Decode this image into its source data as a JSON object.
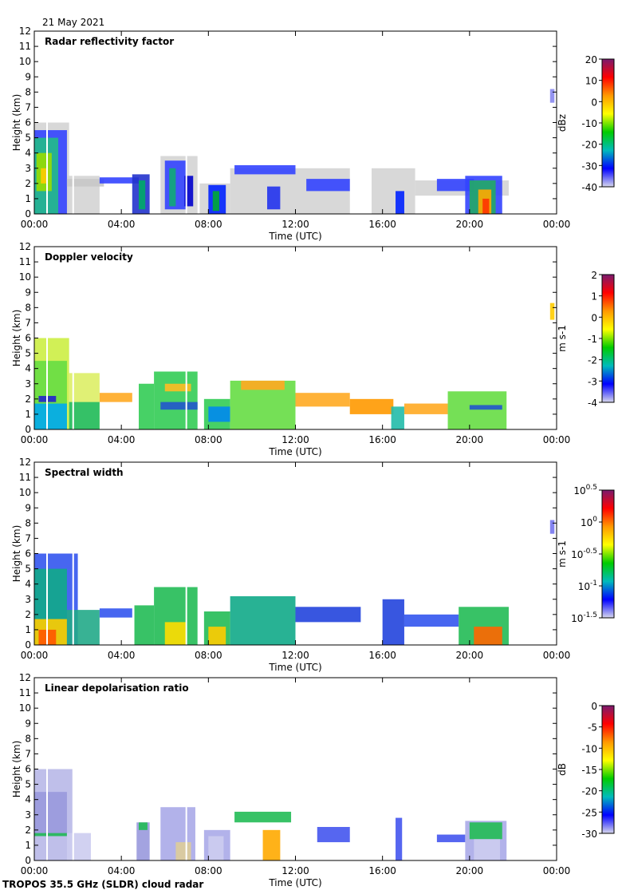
{
  "date_label": "21 May 2021",
  "footer_label": "TROPOS 35.5 GHz (SLDR) cloud radar",
  "chart_data": [
    {
      "type": "heatmap",
      "title": "Radar reflectivity factor",
      "xlabel": "Time (UTC)",
      "ylabel": "Height (km)",
      "xlim": [
        0,
        24
      ],
      "ylim": [
        0,
        12
      ],
      "xticks": [
        "00:00",
        "04:00",
        "08:00",
        "12:00",
        "16:00",
        "20:00",
        "00:00"
      ],
      "yticks": [
        "0",
        "1",
        "2",
        "3",
        "4",
        "5",
        "6",
        "7",
        "8",
        "9",
        "10",
        "11",
        "12"
      ],
      "colorbar": {
        "label": "dBz",
        "ticks": [
          "20",
          "10",
          "0",
          "-10",
          "-20",
          "-30",
          "-40"
        ],
        "colors": [
          "#7a1a6e",
          "#ff0000",
          "#ff9900",
          "#ffff00",
          "#00cc00",
          "#00bbbb",
          "#0000ff",
          "#d8d8ec"
        ]
      },
      "patches": [
        [
          0,
          3,
          0,
          2.5,
          "#d4d4d4"
        ],
        [
          0,
          1.6,
          0,
          6,
          "#d4d4d4"
        ],
        [
          0,
          1.5,
          0,
          5.5,
          "#3344ff"
        ],
        [
          0,
          1.1,
          0,
          5,
          "#22bb88"
        ],
        [
          0.1,
          0.8,
          1.5,
          4,
          "#99dd00"
        ],
        [
          0.3,
          0.6,
          2,
          3,
          "#ffcc00"
        ],
        [
          1.5,
          3.2,
          1.8,
          2.3,
          "#c8c8c8"
        ],
        [
          3,
          4.8,
          2,
          2.4,
          "#3344ff"
        ],
        [
          4.5,
          5.3,
          0,
          2.6,
          "#2233cc"
        ],
        [
          4.8,
          5.1,
          0.3,
          2.2,
          "#00aa66"
        ],
        [
          5.8,
          7.5,
          0,
          3.8,
          "#d4d4d4"
        ],
        [
          6,
          7,
          0.3,
          3.5,
          "#3344ff"
        ],
        [
          6.2,
          6.5,
          0.5,
          3,
          "#11aa77"
        ],
        [
          6.9,
          7.3,
          0.5,
          2.5,
          "#0000cc"
        ],
        [
          7.6,
          9,
          0,
          2,
          "#d4d4d4"
        ],
        [
          8,
          8.8,
          0,
          1.9,
          "#0022ff"
        ],
        [
          8.2,
          8.5,
          0.2,
          1.5,
          "#00aa33"
        ],
        [
          9,
          14.5,
          0,
          3,
          "#d4d4d4"
        ],
        [
          9.2,
          12,
          2.6,
          3.2,
          "#3344ff"
        ],
        [
          10.7,
          11.3,
          0.3,
          1.8,
          "#2233ee"
        ],
        [
          12.5,
          14.5,
          1.5,
          2.3,
          "#3344ff"
        ],
        [
          15.5,
          17.5,
          0,
          3,
          "#d4d4d4"
        ],
        [
          16.6,
          17,
          0,
          1.5,
          "#0022ff"
        ],
        [
          17.5,
          21.8,
          1.2,
          2.2,
          "#d4d4d4"
        ],
        [
          18.5,
          20.2,
          1.5,
          2.3,
          "#3344ff"
        ],
        [
          19.8,
          21.5,
          0,
          2.5,
          "#3344ff"
        ],
        [
          20,
          21.2,
          0,
          2.2,
          "#22aa66"
        ],
        [
          20.4,
          21,
          0,
          1.6,
          "#ffaa00"
        ],
        [
          20.6,
          20.9,
          0,
          1,
          "#ff3300"
        ],
        [
          23.7,
          23.9,
          7.3,
          8.2,
          "#8888ee"
        ]
      ]
    },
    {
      "type": "heatmap",
      "title": "Doppler velocity",
      "xlabel": "Time (UTC)",
      "ylabel": "Height (km)",
      "xlim": [
        0,
        24
      ],
      "ylim": [
        0,
        12
      ],
      "xticks": [
        "00:00",
        "04:00",
        "08:00",
        "12:00",
        "16:00",
        "20:00",
        "00:00"
      ],
      "yticks": [
        "0",
        "1",
        "2",
        "3",
        "4",
        "5",
        "6",
        "7",
        "8",
        "9",
        "10",
        "11",
        "12"
      ],
      "colorbar": {
        "label": "m s-1",
        "ticks": [
          "2",
          "1",
          "0",
          "-1",
          "-2",
          "-3",
          "-4"
        ],
        "colors": [
          "#7a1a6e",
          "#ff0000",
          "#ff9900",
          "#ffff00",
          "#00cc00",
          "#00bbbb",
          "#0000ff",
          "#d8d8ec"
        ]
      },
      "patches": [
        [
          0,
          1.6,
          0,
          6,
          "#ccee44"
        ],
        [
          0,
          1.5,
          0,
          4.5,
          "#66dd44"
        ],
        [
          0,
          1.5,
          0,
          1.7,
          "#00aaee"
        ],
        [
          0.2,
          1,
          1.8,
          2.2,
          "#2222cc"
        ],
        [
          1.6,
          3,
          0,
          3.7,
          "#ddee66"
        ],
        [
          1.6,
          3,
          0,
          1.8,
          "#22bb66"
        ],
        [
          3,
          4.5,
          1.8,
          2.4,
          "#ffaa22"
        ],
        [
          4.8,
          5.5,
          0,
          3,
          "#33cc55"
        ],
        [
          5.5,
          7.5,
          0,
          3.8,
          "#33cc55"
        ],
        [
          5.8,
          7.5,
          1.3,
          1.8,
          "#2255cc"
        ],
        [
          6,
          7.2,
          2.5,
          3,
          "#ffbb22"
        ],
        [
          7.8,
          9,
          0,
          2,
          "#33cc55"
        ],
        [
          8,
          9,
          0.5,
          1.5,
          "#0088ee"
        ],
        [
          9,
          12,
          0,
          3.2,
          "#66dd44"
        ],
        [
          9.5,
          11.5,
          2.6,
          3.2,
          "#ffaa22"
        ],
        [
          12,
          14.5,
          1.5,
          2.4,
          "#ffaa22"
        ],
        [
          14.5,
          16.5,
          1,
          2,
          "#ff9900"
        ],
        [
          16.4,
          17,
          0,
          1.5,
          "#22bbaa"
        ],
        [
          17,
          19,
          1,
          1.7,
          "#ffaa22"
        ],
        [
          19,
          21.7,
          0,
          2.5,
          "#66dd44"
        ],
        [
          20,
          21.5,
          1.3,
          1.6,
          "#2255cc"
        ],
        [
          23.7,
          23.9,
          7.2,
          8.3,
          "#ffcc00"
        ]
      ]
    },
    {
      "type": "heatmap",
      "title": "Spectral width",
      "xlabel": "Time (UTC)",
      "ylabel": "Height (km)",
      "xlim": [
        0,
        24
      ],
      "ylim": [
        0,
        12
      ],
      "xticks": [
        "00:00",
        "04:00",
        "08:00",
        "12:00",
        "16:00",
        "20:00",
        "00:00"
      ],
      "yticks": [
        "0",
        "1",
        "2",
        "3",
        "4",
        "5",
        "6",
        "7",
        "8",
        "9",
        "10",
        "11",
        "12"
      ],
      "colorbar": {
        "label": "m s-1",
        "ticks": [
          "10^0.5",
          "10^0",
          "10^-0.5",
          "10^-1",
          "10^-1.5"
        ],
        "colors": [
          "#7a1a6e",
          "#ff0000",
          "#ff9900",
          "#ffff00",
          "#00cc00",
          "#00bbbb",
          "#0000ff",
          "#d8d8ec"
        ]
      },
      "patches": [
        [
          0,
          2,
          0,
          6,
          "#3355ee"
        ],
        [
          0,
          1.5,
          0,
          5,
          "#11aa88"
        ],
        [
          0,
          1.5,
          0,
          1.7,
          "#ffcc00"
        ],
        [
          0.2,
          1,
          0,
          1,
          "#ff5500"
        ],
        [
          1.5,
          3,
          0,
          2.3,
          "#22aa88"
        ],
        [
          3,
          4.5,
          1.8,
          2.4,
          "#3355ee"
        ],
        [
          4.6,
          5.5,
          0,
          2.6,
          "#22bb55"
        ],
        [
          5.5,
          7.5,
          0,
          3.8,
          "#22bb55"
        ],
        [
          6,
          7,
          0,
          1.5,
          "#ffdd00"
        ],
        [
          7.8,
          9,
          0,
          2.2,
          "#22bb55"
        ],
        [
          8,
          8.8,
          0,
          1.2,
          "#ffcc00"
        ],
        [
          9,
          12,
          0,
          3.2,
          "#11aa88"
        ],
        [
          12,
          15,
          1.5,
          2.5,
          "#2244dd"
        ],
        [
          16,
          17,
          0,
          3,
          "#2244dd"
        ],
        [
          17,
          19.5,
          1.2,
          2,
          "#3355ee"
        ],
        [
          19.5,
          21.8,
          0,
          2.5,
          "#22bb55"
        ],
        [
          20.2,
          21.5,
          0,
          1.2,
          "#ff6600"
        ],
        [
          23.7,
          23.9,
          7.3,
          8.2,
          "#7777ee"
        ]
      ]
    },
    {
      "type": "heatmap",
      "title": "Linear depolarisation ratio",
      "xlabel": "Time (UTC)",
      "ylabel": "Height (km)",
      "xlim": [
        0,
        24
      ],
      "ylim": [
        0,
        12
      ],
      "xticks": [
        "00:00",
        "04:00",
        "08:00",
        "12:00",
        "16:00",
        "20:00",
        "00:00"
      ],
      "yticks": [
        "0",
        "1",
        "2",
        "3",
        "4",
        "5",
        "6",
        "7",
        "8",
        "9",
        "10",
        "11",
        "12"
      ],
      "colorbar": {
        "label": "dB",
        "ticks": [
          "0",
          "-5",
          "-10",
          "-15",
          "-20",
          "-25",
          "-30"
        ],
        "colors": [
          "#7a1a6e",
          "#ff0000",
          "#ff9900",
          "#ffff00",
          "#00cc00",
          "#00bbbb",
          "#0000ff",
          "#d8d8ec"
        ]
      },
      "patches": [
        [
          0,
          1.8,
          0,
          6,
          "#b8b8e8"
        ],
        [
          0,
          1.5,
          1.6,
          4.5,
          "#9999dd"
        ],
        [
          0,
          1.5,
          1.6,
          1.8,
          "#22bb55"
        ],
        [
          1.5,
          2.6,
          0,
          1.8,
          "#ccccf0"
        ],
        [
          4.7,
          5.3,
          0,
          2.5,
          "#9999dd"
        ],
        [
          4.8,
          5.2,
          2,
          2.5,
          "#22bb55"
        ],
        [
          5.8,
          7.4,
          0,
          3.5,
          "#aaaae8"
        ],
        [
          6.5,
          7.2,
          0,
          1.2,
          "#ddcc99"
        ],
        [
          7.8,
          9,
          0,
          2,
          "#aaaae8"
        ],
        [
          8,
          8.7,
          0,
          1.6,
          "#ccccf0"
        ],
        [
          9.2,
          11.8,
          2.5,
          3.2,
          "#22bb55"
        ],
        [
          10.5,
          11.3,
          0,
          2,
          "#ffaa00"
        ],
        [
          13,
          14.5,
          1.2,
          2.2,
          "#4455ee"
        ],
        [
          16.6,
          16.9,
          0,
          2.8,
          "#4455ee"
        ],
        [
          18.5,
          19.8,
          1.2,
          1.7,
          "#4455ee"
        ],
        [
          19.8,
          21.7,
          0,
          2.6,
          "#aaaae8"
        ],
        [
          20,
          21.5,
          1.4,
          2.5,
          "#22bb55"
        ],
        [
          20.2,
          21.4,
          0,
          1.4,
          "#ccccf0"
        ]
      ]
    }
  ]
}
